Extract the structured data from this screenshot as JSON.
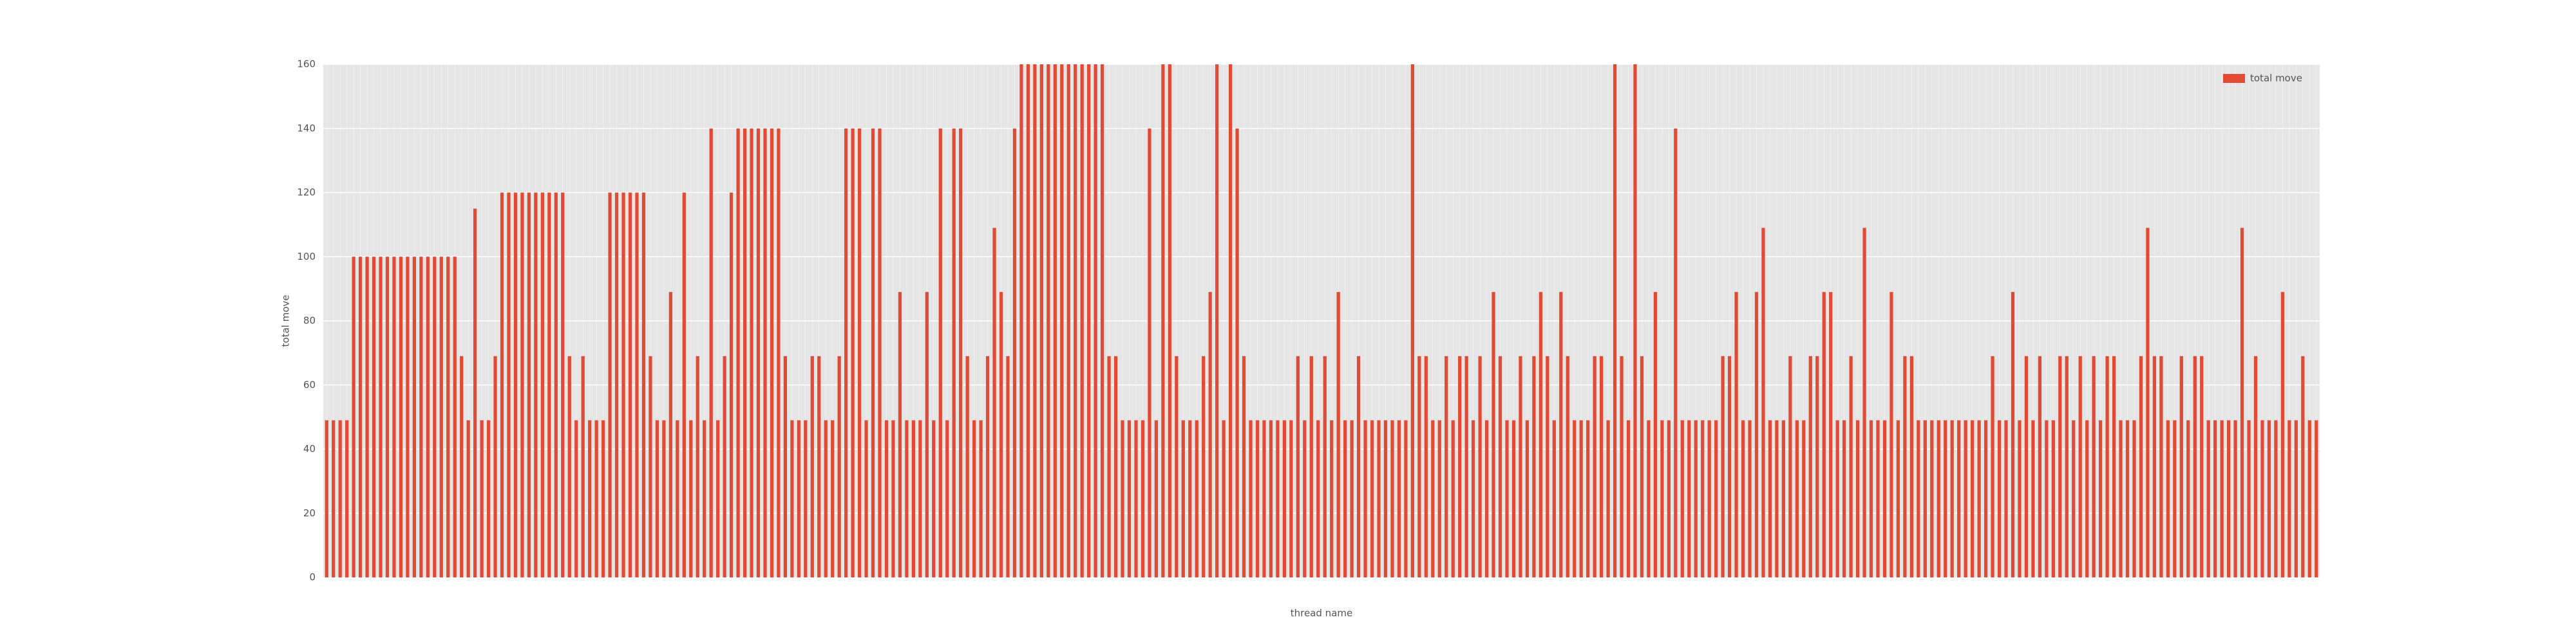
{
  "chart_data": {
    "type": "bar",
    "xlabel": "thread name",
    "ylabel": "total move",
    "legend": "upper right",
    "grid": true,
    "series": [
      {
        "name": "total move",
        "color": "#E24A33",
        "values": [
          49,
          49,
          49,
          49,
          100,
          100,
          100,
          100,
          100,
          100,
          100,
          100,
          100,
          100,
          100,
          100,
          100,
          100,
          100,
          100,
          69,
          49,
          115,
          49,
          49,
          69,
          120,
          120,
          120,
          120,
          120,
          120,
          120,
          120,
          120,
          120,
          69,
          49,
          69,
          49,
          49,
          49,
          120,
          120,
          120,
          120,
          120,
          120,
          69,
          49,
          49,
          89,
          49,
          120,
          49,
          69,
          49,
          140,
          49,
          69,
          120,
          140,
          140,
          140,
          140,
          140,
          140,
          140,
          69,
          49,
          49,
          49,
          69,
          69,
          49,
          49,
          69,
          140,
          140,
          140,
          49,
          140,
          140,
          49,
          49,
          89,
          49,
          49,
          49,
          89,
          49,
          140,
          49,
          140,
          140,
          69,
          49,
          49,
          69,
          109,
          89,
          69,
          140,
          160,
          160,
          160,
          160,
          160,
          160,
          160,
          160,
          160,
          160,
          160,
          160,
          160,
          69,
          69,
          49,
          49,
          49,
          49,
          140,
          49,
          160,
          160,
          69,
          49,
          49,
          49,
          69,
          89,
          160,
          49,
          160,
          140,
          69,
          49,
          49,
          49,
          49,
          49,
          49,
          49,
          69,
          49,
          69,
          49,
          69,
          49,
          89,
          49,
          49,
          69,
          49,
          49,
          49,
          49,
          49,
          49,
          49,
          160,
          69,
          69,
          49,
          49,
          69,
          49,
          69,
          69,
          49,
          69,
          49,
          89,
          69,
          49,
          49,
          69,
          49,
          69,
          89,
          69,
          49,
          89,
          69,
          49,
          49,
          49,
          69,
          69,
          49,
          160,
          69,
          49,
          160,
          69,
          49,
          89,
          49,
          49,
          140,
          49,
          49,
          49,
          49,
          49,
          49,
          69,
          69,
          89,
          49,
          49,
          89,
          109,
          49,
          49,
          49,
          69,
          49,
          49,
          69,
          69,
          89,
          89,
          49,
          49,
          69,
          49,
          109,
          49,
          49,
          49,
          89,
          49,
          69,
          69,
          49,
          49,
          49,
          49,
          49,
          49,
          49,
          49,
          49,
          49,
          49,
          69,
          49,
          49,
          89,
          49,
          69,
          49,
          69,
          49,
          49,
          69,
          69,
          49,
          69,
          49,
          69,
          49,
          69,
          69,
          49,
          49,
          49,
          69,
          109,
          69,
          69,
          49,
          49,
          69,
          49,
          69,
          69,
          49,
          49,
          49,
          49,
          49,
          109,
          49,
          69,
          49,
          49,
          49,
          89,
          49,
          49,
          69,
          49,
          49
        ]
      }
    ],
    "ylim": [
      0,
      160
    ],
    "yticks": [
      0,
      20,
      40,
      60,
      80,
      100,
      120,
      140,
      160
    ]
  }
}
